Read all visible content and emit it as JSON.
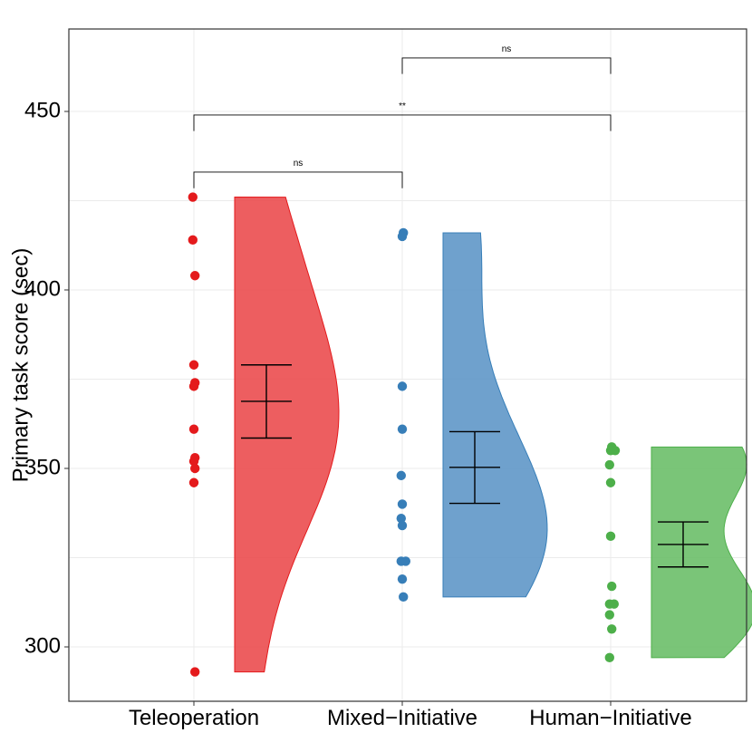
{
  "chart_data": {
    "type": "raincloud",
    "title": "",
    "xlabel": "",
    "ylabel": "Primary task score (sec)",
    "ylim": [
      285,
      473
    ],
    "yticks": [
      300,
      350,
      400,
      450
    ],
    "categories": [
      "Teleoperation",
      "Mixed−Initiative",
      "Human−Initiative"
    ],
    "series": [
      {
        "name": "Teleoperation",
        "color": "#E41A1C",
        "fill": "#EB4C4F",
        "points": [
          426,
          414,
          404,
          379,
          374,
          373,
          361,
          353,
          352,
          350,
          346,
          293
        ],
        "mean": 368.8,
        "se_low": 358.5,
        "se_high": 379,
        "range": [
          293,
          426
        ],
        "peak": 365,
        "bandwidth_shape": "unimodal"
      },
      {
        "name": "Mixed−Initiative",
        "color": "#377EB8",
        "fill": "#5F97C8",
        "points": [
          416,
          415,
          373,
          361,
          348,
          340,
          336,
          334,
          324,
          324,
          319,
          314
        ],
        "mean": 350.3,
        "se_low": 340.2,
        "se_high": 360.3,
        "range": [
          314,
          416
        ],
        "peak": 337,
        "bandwidth_shape": "unimodal"
      },
      {
        "name": "Human−Initiative",
        "color": "#4DAF4A",
        "fill": "#6CBF69",
        "points": [
          356,
          355,
          355,
          351,
          346,
          331,
          317,
          312,
          312,
          309,
          305,
          297
        ],
        "mean": 328.7,
        "se_low": 322.4,
        "se_high": 335,
        "range": [
          297,
          356
        ],
        "peak": 327,
        "bandwidth_shape": "unimodal"
      }
    ],
    "annotations": [
      {
        "from": 0,
        "to": 1,
        "label": "ns",
        "y": 433,
        "drop": 428.5
      },
      {
        "from": 0,
        "to": 2,
        "label": "**",
        "y": 449,
        "drop": 444.5
      },
      {
        "from": 1,
        "to": 2,
        "label": "ns",
        "y": 465,
        "drop": 460.5
      }
    ]
  }
}
